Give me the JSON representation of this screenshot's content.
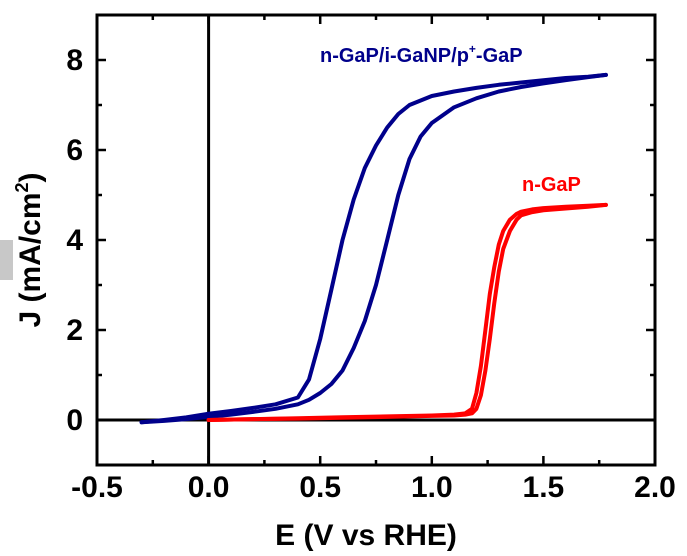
{
  "chart_data": {
    "type": "line",
    "xlabel": "E (V vs RHE)",
    "ylabel": "J (mA/cm",
    "ylabel_sup": "2",
    "ylabel_close": ")",
    "xlim": [
      -0.5,
      2.0
    ],
    "ylim": [
      -1.0,
      9.0
    ],
    "xticks": [
      -0.5,
      0.0,
      0.5,
      1.0,
      1.5,
      2.0
    ],
    "xtick_labels": [
      "-0.5",
      "0.0",
      "0.5",
      "1.0",
      "1.5",
      "2.0"
    ],
    "yticks": [
      0,
      2,
      4,
      6,
      8
    ],
    "ytick_labels": [
      "0",
      "2",
      "4",
      "6",
      "8"
    ],
    "grid": false,
    "series": [
      {
        "name": "n-GaP/i-GaNP/p+-GaP",
        "label_main": "n-GaP/i-GaNP/p",
        "label_sup": "+",
        "label_tail": "-GaP",
        "color": "#00008B",
        "sweeps": [
          {
            "x": [
              -0.3,
              -0.2,
              -0.1,
              0.0,
              0.1,
              0.2,
              0.3,
              0.4,
              0.45,
              0.5,
              0.55,
              0.6,
              0.65,
              0.7,
              0.75,
              0.8,
              0.85,
              0.9,
              1.0,
              1.1,
              1.2,
              1.3,
              1.4,
              1.5,
              1.6,
              1.7,
              1.78
            ],
            "y": [
              -0.05,
              0.0,
              0.06,
              0.14,
              0.2,
              0.27,
              0.35,
              0.5,
              0.9,
              1.8,
              2.9,
              4.0,
              4.9,
              5.6,
              6.1,
              6.5,
              6.8,
              7.0,
              7.2,
              7.3,
              7.38,
              7.45,
              7.5,
              7.55,
              7.6,
              7.63,
              7.67
            ]
          },
          {
            "x": [
              1.78,
              1.7,
              1.6,
              1.5,
              1.4,
              1.3,
              1.2,
              1.1,
              1.0,
              0.95,
              0.9,
              0.85,
              0.8,
              0.75,
              0.7,
              0.65,
              0.6,
              0.55,
              0.5,
              0.45,
              0.4,
              0.3,
              0.2,
              0.1,
              0.0,
              -0.1,
              -0.2,
              -0.3
            ],
            "y": [
              7.67,
              7.62,
              7.55,
              7.48,
              7.4,
              7.3,
              7.15,
              6.95,
              6.6,
              6.3,
              5.8,
              5.0,
              4.0,
              3.0,
              2.2,
              1.6,
              1.1,
              0.8,
              0.6,
              0.45,
              0.35,
              0.25,
              0.18,
              0.12,
              0.07,
              0.02,
              -0.02,
              -0.05
            ]
          }
        ]
      },
      {
        "name": "n-GaP",
        "label_main": "n-GaP",
        "label_sup": "",
        "label_tail": "",
        "color": "#FF0000",
        "sweeps": [
          {
            "x": [
              0.0,
              0.2,
              0.4,
              0.6,
              0.8,
              1.0,
              1.1,
              1.15,
              1.18,
              1.2,
              1.22,
              1.24,
              1.26,
              1.28,
              1.3,
              1.32,
              1.35,
              1.38,
              1.4,
              1.45,
              1.5,
              1.6,
              1.7,
              1.78
            ],
            "y": [
              0.0,
              0.02,
              0.04,
              0.06,
              0.08,
              0.1,
              0.12,
              0.15,
              0.25,
              0.6,
              1.2,
              2.0,
              2.8,
              3.4,
              3.9,
              4.2,
              4.45,
              4.58,
              4.63,
              4.68,
              4.71,
              4.74,
              4.76,
              4.78
            ]
          },
          {
            "x": [
              1.78,
              1.7,
              1.6,
              1.5,
              1.45,
              1.4,
              1.38,
              1.35,
              1.32,
              1.3,
              1.28,
              1.26,
              1.24,
              1.22,
              1.2,
              1.18,
              1.15,
              1.1,
              1.0,
              0.8,
              0.6,
              0.4,
              0.2,
              0.0
            ],
            "y": [
              4.78,
              4.74,
              4.7,
              4.66,
              4.62,
              4.55,
              4.45,
              4.2,
              3.8,
              3.3,
              2.6,
              1.8,
              1.1,
              0.55,
              0.25,
              0.15,
              0.12,
              0.1,
              0.09,
              0.07,
              0.05,
              0.03,
              0.02,
              0.0
            ]
          }
        ]
      }
    ],
    "legend_placement": "inline labels near curves"
  }
}
